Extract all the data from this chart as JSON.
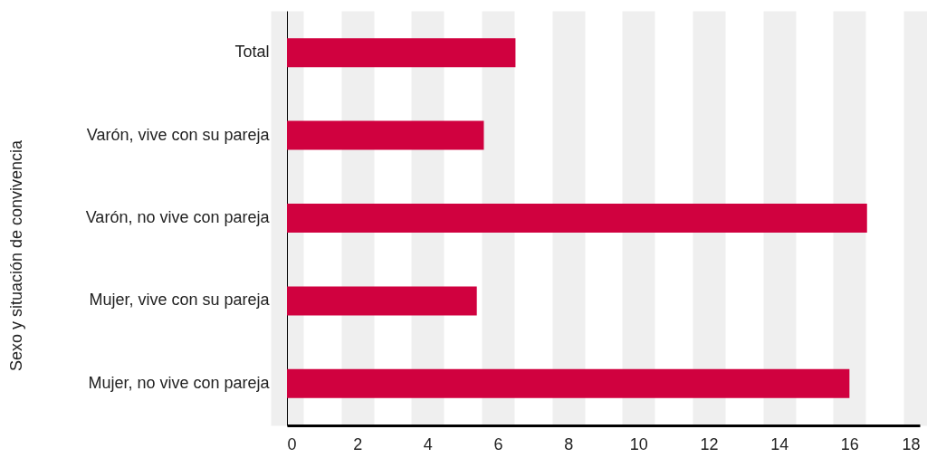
{
  "chart_data": {
    "type": "bar",
    "orientation": "horizontal",
    "ylabel": "Sexo y situación de convivencia",
    "categories": [
      "Total",
      "Varón, vive con su pareja",
      "Varón, no vive con pareja",
      "Mujer, vive con su pareja",
      "Mujer, no vive con pareja"
    ],
    "values": [
      6.5,
      5.6,
      16.5,
      5.4,
      16.0
    ],
    "color": "#d0013f",
    "xlim": [
      0,
      18
    ],
    "xticks": [
      0,
      2,
      4,
      6,
      8,
      10,
      12,
      14,
      16,
      18
    ],
    "grid": "x",
    "legend": false
  }
}
